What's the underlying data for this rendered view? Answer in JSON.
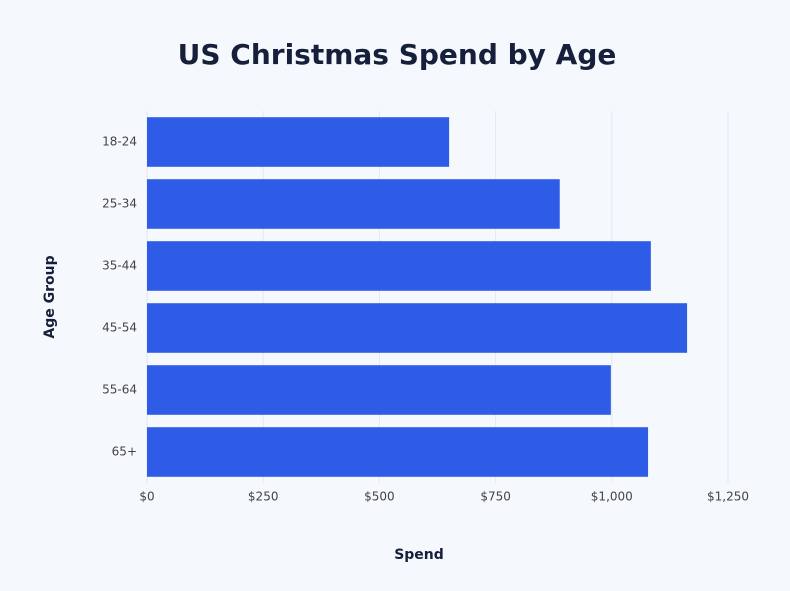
{
  "chart_data": {
    "type": "bar",
    "orientation": "horizontal",
    "title": "US Christmas Spend by Age",
    "x_label": "Spend",
    "y_label": "Age Group",
    "categories": [
      "18-24",
      "25-34",
      "35-44",
      "45-54",
      "55-64",
      "65+"
    ],
    "values": [
      650,
      888,
      1084,
      1162,
      998,
      1078
    ],
    "color": "#2f5ce6",
    "xlim": [
      0,
      1250
    ],
    "xticks": [
      {
        "value": 0,
        "label": "$0"
      },
      {
        "value": 250,
        "label": "$250"
      },
      {
        "value": 500,
        "label": "$500"
      },
      {
        "value": 750,
        "label": "$750"
      },
      {
        "value": 1000,
        "label": "$1,000"
      },
      {
        "value": 1250,
        "label": "$1,250"
      }
    ],
    "grid": true
  }
}
